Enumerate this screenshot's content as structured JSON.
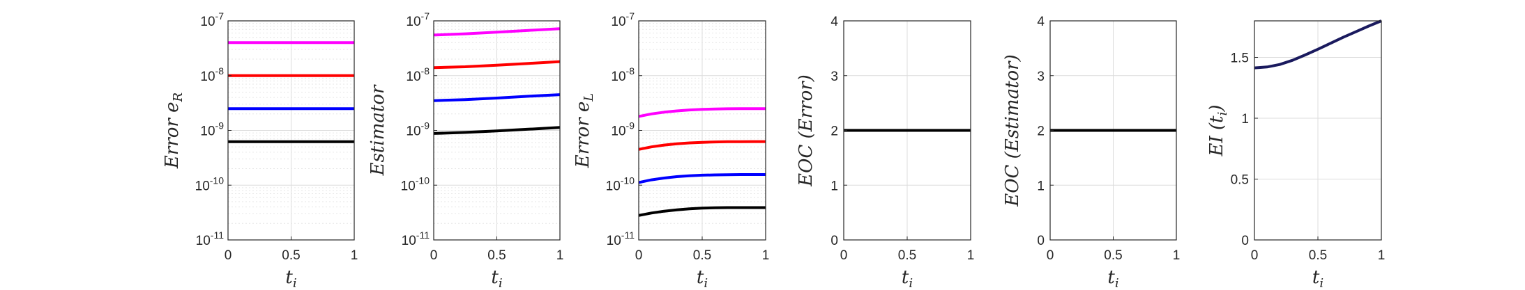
{
  "chart_data": [
    {
      "type": "line",
      "xlabel": "t_i",
      "ylabel": "Error e_R",
      "yscale": "log",
      "xlim": [
        0,
        1
      ],
      "ylim": [
        1e-11,
        1e-07
      ],
      "xticks": [
        "0",
        "0.5",
        "1"
      ],
      "yticks": [
        "10^-11",
        "10^-10",
        "10^-9",
        "10^-8",
        "10^-7"
      ],
      "grid": true,
      "series": [
        {
          "color": "#ff00ff",
          "x": [
            0,
            1
          ],
          "y": [
            4e-08,
            4e-08
          ]
        },
        {
          "color": "#ff0000",
          "x": [
            0,
            1
          ],
          "y": [
            1e-08,
            1e-08
          ]
        },
        {
          "color": "#0000ff",
          "x": [
            0,
            1
          ],
          "y": [
            2.5e-09,
            2.5e-09
          ]
        },
        {
          "color": "#000000",
          "x": [
            0,
            1
          ],
          "y": [
            6.2e-10,
            6.2e-10
          ]
        }
      ]
    },
    {
      "type": "line",
      "xlabel": "t_i",
      "ylabel": "Estimator",
      "yscale": "log",
      "xlim": [
        0,
        1
      ],
      "ylim": [
        1e-11,
        1e-07
      ],
      "xticks": [
        "0",
        "0.5",
        "1"
      ],
      "yticks": [
        "10^-11",
        "10^-10",
        "10^-9",
        "10^-8",
        "10^-7"
      ],
      "grid": true,
      "series": [
        {
          "color": "#ff00ff",
          "x": [
            0,
            0.25,
            0.5,
            0.75,
            1
          ],
          "y": [
            5.5e-08,
            5.8e-08,
            6.2e-08,
            6.7e-08,
            7.2e-08
          ]
        },
        {
          "color": "#ff0000",
          "x": [
            0,
            0.25,
            0.5,
            0.75,
            1
          ],
          "y": [
            1.4e-08,
            1.45e-08,
            1.55e-08,
            1.67e-08,
            1.8e-08
          ]
        },
        {
          "color": "#0000ff",
          "x": [
            0,
            0.25,
            0.5,
            0.75,
            1
          ],
          "y": [
            3.5e-09,
            3.65e-09,
            3.9e-09,
            4.2e-09,
            4.5e-09
          ]
        },
        {
          "color": "#000000",
          "x": [
            0,
            0.25,
            0.5,
            0.75,
            1
          ],
          "y": [
            8.8e-10,
            9.2e-10,
            9.8e-10,
            1.05e-09,
            1.13e-09
          ]
        }
      ]
    },
    {
      "type": "line",
      "xlabel": "t_i",
      "ylabel": "Error e_L",
      "yscale": "log",
      "xlim": [
        0,
        1
      ],
      "ylim": [
        1e-11,
        1e-07
      ],
      "xticks": [
        "0",
        "0.5",
        "1"
      ],
      "yticks": [
        "10^-11",
        "10^-10",
        "10^-9",
        "10^-8",
        "10^-7"
      ],
      "grid": true,
      "series": [
        {
          "color": "#ff00ff",
          "x": [
            0,
            0.1,
            0.2,
            0.3,
            0.4,
            0.5,
            0.6,
            0.7,
            0.8,
            0.9,
            1
          ],
          "y": [
            1.8e-09,
            2e-09,
            2.15e-09,
            2.27e-09,
            2.36e-09,
            2.42e-09,
            2.46e-09,
            2.48e-09,
            2.49e-09,
            2.5e-09,
            2.5e-09
          ]
        },
        {
          "color": "#ff0000",
          "x": [
            0,
            0.1,
            0.2,
            0.3,
            0.4,
            0.5,
            0.6,
            0.7,
            0.8,
            0.9,
            1
          ],
          "y": [
            4.5e-10,
            5e-10,
            5.4e-10,
            5.7e-10,
            5.9e-10,
            6.05e-10,
            6.15e-10,
            6.2e-10,
            6.22e-10,
            6.24e-10,
            6.25e-10
          ]
        },
        {
          "color": "#0000ff",
          "x": [
            0,
            0.1,
            0.2,
            0.3,
            0.4,
            0.5,
            0.6,
            0.7,
            0.8,
            0.9,
            1
          ],
          "y": [
            1.12e-10,
            1.25e-10,
            1.35e-10,
            1.43e-10,
            1.48e-10,
            1.52e-10,
            1.54e-10,
            1.55e-10,
            1.56e-10,
            1.56e-10,
            1.56e-10
          ]
        },
        {
          "color": "#000000",
          "x": [
            0,
            0.1,
            0.2,
            0.3,
            0.4,
            0.5,
            0.6,
            0.7,
            0.8,
            0.9,
            1
          ],
          "y": [
            2.8e-11,
            3.1e-11,
            3.35e-11,
            3.55e-11,
            3.7e-11,
            3.8e-11,
            3.86e-11,
            3.89e-11,
            3.9e-11,
            3.9e-11,
            3.9e-11
          ]
        }
      ]
    },
    {
      "type": "line",
      "xlabel": "t_i",
      "ylabel": "EOC (Error)",
      "yscale": "linear",
      "xlim": [
        0,
        1
      ],
      "ylim": [
        0,
        4
      ],
      "xticks": [
        "0",
        "0.5",
        "1"
      ],
      "yticks": [
        "0",
        "1",
        "2",
        "3",
        "4"
      ],
      "grid": true,
      "series": [
        {
          "color": "#000000",
          "x": [
            0,
            1
          ],
          "y": [
            2,
            2
          ]
        }
      ]
    },
    {
      "type": "line",
      "xlabel": "t_i",
      "ylabel": "EOC (Estimator)",
      "yscale": "linear",
      "xlim": [
        0,
        1
      ],
      "ylim": [
        0,
        4
      ],
      "xticks": [
        "0",
        "0.5",
        "1"
      ],
      "yticks": [
        "0",
        "1",
        "2",
        "3",
        "4"
      ],
      "grid": true,
      "series": [
        {
          "color": "#000000",
          "x": [
            0,
            1
          ],
          "y": [
            2,
            2
          ]
        }
      ]
    },
    {
      "type": "line",
      "xlabel": "t_i",
      "ylabel": "EI (t_i)",
      "yscale": "linear",
      "xlim": [
        0,
        1
      ],
      "ylim": [
        0,
        1.8
      ],
      "xticks": [
        "0",
        "0.5",
        "1"
      ],
      "yticks": [
        "0",
        "0.5",
        "1",
        "1.5"
      ],
      "grid": true,
      "series": [
        {
          "color": "#1a1a5e",
          "x": [
            0,
            0.1,
            0.2,
            0.3,
            0.4,
            0.5,
            0.6,
            0.7,
            0.8,
            0.9,
            1
          ],
          "y": [
            1.414,
            1.421,
            1.442,
            1.476,
            1.52,
            1.567,
            1.616,
            1.665,
            1.711,
            1.757,
            1.8
          ]
        }
      ]
    }
  ]
}
